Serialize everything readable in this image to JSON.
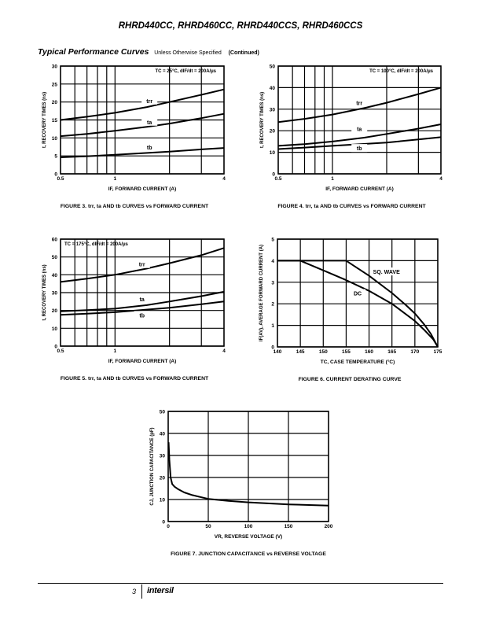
{
  "header": {
    "title": "RHRD440CC, RHRD460CC, RHRD440CCS, RHRD460CCS"
  },
  "section": {
    "title": "Typical Performance Curves",
    "qualifier": "Unless Otherwise Specified",
    "continued": "(Continued)"
  },
  "footer": {
    "page": "3",
    "logo": "intersil"
  },
  "chart_data": [
    {
      "type": "line",
      "caption": "FIGURE 3.  trr, ta AND tb CURVES vs FORWARD CURRENT",
      "condition": "TC = 25°C, dIF/dt = 200A/µs",
      "xlabel": "IF, FORWARD CURRENT (A)",
      "ylabel": "t, RECOVERY TIMES (ns)",
      "xscale": "log",
      "xlim": [
        0.5,
        4
      ],
      "ylim": [
        0,
        30
      ],
      "xticks": [
        0.5,
        1,
        4
      ],
      "xgrid": [
        0.6,
        0.7,
        0.8,
        0.9,
        1,
        2,
        3
      ],
      "yticks": [
        0,
        5,
        10,
        15,
        20,
        25,
        30
      ],
      "grid": true,
      "series": [
        {
          "name": "trr",
          "x": [
            0.5,
            0.7,
            1,
            1.5,
            2,
            3,
            4
          ],
          "y": [
            15,
            15.9,
            17,
            18.6,
            20,
            22,
            23.5
          ]
        },
        {
          "name": "ta",
          "x": [
            0.5,
            0.7,
            1,
            1.5,
            2,
            3,
            4
          ],
          "y": [
            10.5,
            11.1,
            12,
            13.1,
            14,
            15.5,
            16.7
          ]
        },
        {
          "name": "tb",
          "x": [
            0.5,
            0.7,
            1,
            2,
            3,
            4
          ],
          "y": [
            4.6,
            4.9,
            5.3,
            6.2,
            6.8,
            7.2
          ]
        }
      ]
    },
    {
      "type": "line",
      "caption": "FIGURE 4.  trr, ta AND tb CURVES vs FORWARD CURRENT",
      "condition": "TC = 100°C, dIF/dt = 200A/µs",
      "xlabel": "IF, FORWARD CURRENT (A)",
      "ylabel": "t, RECOVERY TIMES (ns)",
      "xscale": "log",
      "xlim": [
        0.5,
        4
      ],
      "ylim": [
        0,
        50
      ],
      "xticks": [
        0.5,
        1,
        4
      ],
      "xgrid": [
        0.6,
        0.7,
        0.8,
        0.9,
        1,
        2,
        3
      ],
      "yticks": [
        0,
        10,
        20,
        30,
        40,
        50
      ],
      "grid": true,
      "series": [
        {
          "name": "trr",
          "x": [
            0.5,
            0.7,
            1,
            1.5,
            2,
            3,
            4
          ],
          "y": [
            24,
            25.5,
            27.5,
            30.5,
            33,
            37,
            40
          ]
        },
        {
          "name": "ta",
          "x": [
            0.5,
            0.7,
            1,
            1.5,
            2,
            3,
            4
          ],
          "y": [
            13,
            13.8,
            15,
            16.8,
            18.5,
            21,
            23
          ]
        },
        {
          "name": "tb",
          "x": [
            0.5,
            0.7,
            1,
            2,
            3,
            4
          ],
          "y": [
            11.5,
            12.2,
            13,
            14.5,
            16,
            17
          ]
        }
      ]
    },
    {
      "type": "line",
      "caption": "FIGURE 5.  trr, ta AND tb CURVES vs FORWARD CURRENT",
      "condition": "TC = 175°C, dIF/dt = 200A/µs",
      "xlabel": "IF, FORWARD CURRENT (A)",
      "ylabel": "t, RECOVERY TIMES (ns)",
      "xscale": "log",
      "xlim": [
        0.5,
        4
      ],
      "ylim": [
        0,
        60
      ],
      "xticks": [
        0.5,
        1,
        4
      ],
      "xgrid": [
        0.6,
        0.7,
        0.8,
        0.9,
        1,
        2,
        3
      ],
      "yticks": [
        0,
        10,
        20,
        30,
        40,
        50,
        60
      ],
      "grid": true,
      "series": [
        {
          "name": "trr",
          "x": [
            0.5,
            0.7,
            1,
            1.5,
            2,
            3,
            4
          ],
          "y": [
            36,
            37.8,
            40,
            43.5,
            46.5,
            51,
            55
          ]
        },
        {
          "name": "ta",
          "x": [
            0.5,
            0.7,
            1,
            1.5,
            2,
            3,
            4
          ],
          "y": [
            19.5,
            20.2,
            21,
            23,
            25,
            28,
            30.5
          ]
        },
        {
          "name": "tb",
          "x": [
            0.5,
            0.7,
            1,
            2,
            3,
            4
          ],
          "y": [
            17.5,
            18.2,
            19,
            21.5,
            23.5,
            25
          ]
        }
      ]
    },
    {
      "type": "line",
      "caption": "FIGURE 6.  CURRENT DERATING CURVE",
      "xlabel": "TC, CASE TEMPERATURE (°C)",
      "ylabel": "IF(AV), AVERAGE FORWARD CURRENT (A)",
      "xscale": "linear",
      "xlim": [
        140,
        175
      ],
      "ylim": [
        0,
        5
      ],
      "xticks": [
        140,
        145,
        150,
        155,
        160,
        165,
        170,
        175
      ],
      "xgrid": [
        145,
        150,
        155,
        160,
        165,
        170
      ],
      "yticks": [
        0,
        1,
        2,
        3,
        4,
        5
      ],
      "grid": true,
      "series": [
        {
          "name": "SQ. WAVE",
          "x": [
            140,
            155,
            160,
            165,
            168,
            170,
            172,
            173.5,
            175
          ],
          "y": [
            4,
            4,
            3.3,
            2.5,
            1.95,
            1.55,
            1.05,
            0.6,
            0
          ]
        },
        {
          "name": "DC",
          "x": [
            140,
            145,
            150,
            155,
            160,
            165,
            170,
            172,
            174,
            175
          ],
          "y": [
            4,
            4,
            3.55,
            3.1,
            2.6,
            2,
            1.2,
            0.8,
            0.35,
            0
          ]
        }
      ]
    },
    {
      "type": "line",
      "caption": "FIGURE 7.  JUNCTION CAPACITANCE vs REVERSE VOLTAGE",
      "xlabel": "VR, REVERSE VOLTAGE (V)",
      "ylabel": "CJ, JUNCTION CAPACITANCE (pF)",
      "xscale": "linear",
      "xlim": [
        0,
        200
      ],
      "ylim": [
        0,
        50
      ],
      "xticks": [
        0,
        50,
        100,
        150,
        200
      ],
      "xgrid": [
        50,
        100,
        150
      ],
      "yticks": [
        0,
        10,
        20,
        30,
        40,
        50
      ],
      "grid": true,
      "series": [
        {
          "name": "CJ",
          "x": [
            0.5,
            1.5,
            3,
            5,
            8,
            12,
            20,
            30,
            50,
            75,
            100,
            150,
            200
          ],
          "y": [
            36,
            28,
            20,
            17,
            15.8,
            14.8,
            13.2,
            12,
            10.3,
            9.4,
            8.7,
            7.8,
            7.2
          ]
        }
      ]
    }
  ]
}
